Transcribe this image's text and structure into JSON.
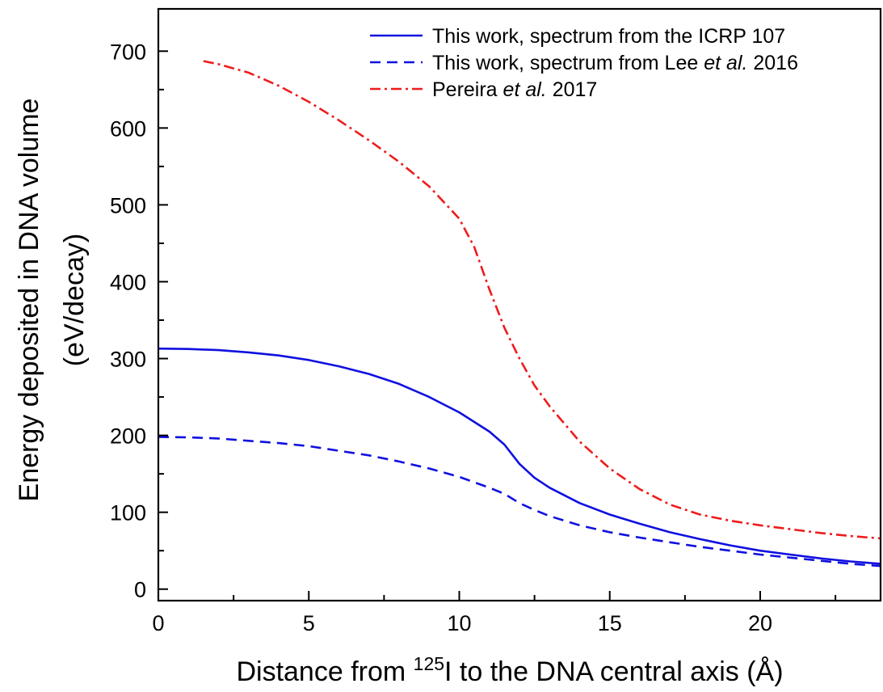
{
  "chart_data": {
    "type": "line",
    "xlabel": {
      "pre": "Distance from ",
      "sup": "125",
      "post": "I to the DNA central axis (Å)"
    },
    "ylabel": {
      "line1": "Energy deposited in DNA volume",
      "line2": "(eV/decay)"
    },
    "xlim": [
      0,
      24
    ],
    "ylim": [
      -15,
      755
    ],
    "x_ticks": [
      0,
      5,
      10,
      15,
      20
    ],
    "x_minor_ticks": [
      2.5,
      7.5,
      12.5,
      17.5,
      22.5
    ],
    "y_ticks": [
      0,
      100,
      200,
      300,
      400,
      500,
      600,
      700
    ],
    "y_minor_ticks": [
      50,
      150,
      250,
      350,
      450,
      550,
      650
    ],
    "grid": false,
    "legend_position": "top-right",
    "series": [
      {
        "legend": [
          {
            "text": "This work, spectrum from the ICRP 107",
            "italic": false
          }
        ],
        "color": "#1010e0",
        "dash": "solid",
        "points": [
          [
            0,
            313
          ],
          [
            1,
            312.5
          ],
          [
            2,
            311
          ],
          [
            3,
            308
          ],
          [
            4,
            304
          ],
          [
            5,
            298
          ],
          [
            6,
            290
          ],
          [
            7,
            280
          ],
          [
            8,
            267
          ],
          [
            9,
            250
          ],
          [
            10,
            230
          ],
          [
            11,
            205
          ],
          [
            11.5,
            188
          ],
          [
            12,
            163
          ],
          [
            12.5,
            145
          ],
          [
            13,
            132
          ],
          [
            14,
            112
          ],
          [
            15,
            97
          ],
          [
            16,
            85
          ],
          [
            17,
            74
          ],
          [
            18,
            65
          ],
          [
            19,
            57
          ],
          [
            20,
            50
          ],
          [
            21,
            45
          ],
          [
            22,
            40
          ],
          [
            23,
            36
          ],
          [
            24,
            33
          ]
        ]
      },
      {
        "legend": [
          {
            "text": "This work, spectrum from Lee ",
            "italic": false
          },
          {
            "text": "et al.",
            "italic": true
          },
          {
            "text": " 2016",
            "italic": false
          }
        ],
        "color": "#1010e0",
        "dash": "dashed",
        "points": [
          [
            0,
            198
          ],
          [
            1,
            197.5
          ],
          [
            2,
            196
          ],
          [
            3,
            193
          ],
          [
            4,
            190
          ],
          [
            5,
            186
          ],
          [
            6,
            180
          ],
          [
            7,
            174
          ],
          [
            8,
            166
          ],
          [
            9,
            157
          ],
          [
            10,
            146
          ],
          [
            11,
            132
          ],
          [
            11.5,
            124
          ],
          [
            12,
            112
          ],
          [
            12.5,
            103
          ],
          [
            13,
            95
          ],
          [
            14,
            83
          ],
          [
            15,
            74
          ],
          [
            16,
            67
          ],
          [
            17,
            61
          ],
          [
            18,
            55
          ],
          [
            19,
            50
          ],
          [
            20,
            45
          ],
          [
            21,
            41
          ],
          [
            22,
            37
          ],
          [
            23,
            33
          ],
          [
            24,
            30
          ]
        ]
      },
      {
        "legend": [
          {
            "text": "Pereira ",
            "italic": false
          },
          {
            "text": "et al.",
            "italic": true
          },
          {
            "text": " 2017",
            "italic": false
          }
        ],
        "color": "#ee1c1c",
        "dash": "dashdot",
        "points": [
          [
            1.5,
            687
          ],
          [
            2,
            683
          ],
          [
            3,
            672
          ],
          [
            4,
            655
          ],
          [
            5,
            634
          ],
          [
            6,
            610
          ],
          [
            7,
            584
          ],
          [
            8,
            556
          ],
          [
            9,
            524
          ],
          [
            10,
            482
          ],
          [
            10.5,
            445
          ],
          [
            11,
            390
          ],
          [
            11.5,
            340
          ],
          [
            12,
            300
          ],
          [
            12.5,
            265
          ],
          [
            13,
            238
          ],
          [
            14,
            192
          ],
          [
            15,
            157
          ],
          [
            16,
            130
          ],
          [
            17,
            110
          ],
          [
            18,
            97
          ],
          [
            19,
            89
          ],
          [
            20,
            83
          ],
          [
            21,
            78
          ],
          [
            22,
            73
          ],
          [
            23,
            69
          ],
          [
            24,
            66
          ]
        ]
      }
    ]
  }
}
